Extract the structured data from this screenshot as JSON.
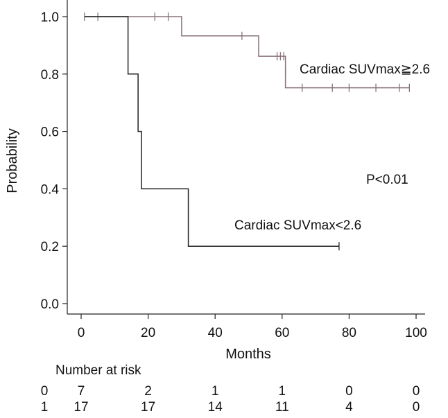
{
  "chart_data": {
    "type": "line",
    "subtype": "kaplan-meier",
    "title": "",
    "xlabel": "Months",
    "ylabel": "Probability",
    "xlim": [
      -4,
      102
    ],
    "ylim": [
      -0.03,
      1.03
    ],
    "xticks": [
      0,
      20,
      40,
      60,
      80,
      100
    ],
    "yticks": [
      0.0,
      0.2,
      0.4,
      0.6,
      0.8,
      1.0
    ],
    "xtick_labels": [
      "0",
      "20",
      "40",
      "60",
      "80",
      "100"
    ],
    "ytick_labels": [
      "0.0",
      "0.2",
      "0.4",
      "0.6",
      "0.8",
      "1.0"
    ],
    "series": [
      {
        "name": "Cardiac SUVmax≧2.6",
        "color": "#8a7377",
        "steps": [
          {
            "x": 1,
            "y": 1.0
          },
          {
            "x": 30,
            "y": 0.933
          },
          {
            "x": 53,
            "y": 0.862
          },
          {
            "x": 61,
            "y": 0.752
          },
          {
            "x": 98,
            "y": 0.752
          }
        ],
        "censored": [
          {
            "x": 1,
            "y": 1.0
          },
          {
            "x": 5,
            "y": 1.0
          },
          {
            "x": 22,
            "y": 1.0
          },
          {
            "x": 26,
            "y": 1.0
          },
          {
            "x": 48,
            "y": 0.933
          },
          {
            "x": 58.5,
            "y": 0.862
          },
          {
            "x": 59.5,
            "y": 0.862
          },
          {
            "x": 60.5,
            "y": 0.862
          },
          {
            "x": 61,
            "y": 0.81
          },
          {
            "x": 66,
            "y": 0.752
          },
          {
            "x": 75,
            "y": 0.752
          },
          {
            "x": 80,
            "y": 0.752
          },
          {
            "x": 88,
            "y": 0.752
          },
          {
            "x": 95,
            "y": 0.752
          },
          {
            "x": 98,
            "y": 0.752
          }
        ]
      },
      {
        "name": "Cardiac SUVmax<2.6",
        "color": "#222222",
        "steps": [
          {
            "x": 1,
            "y": 1.0
          },
          {
            "x": 14,
            "y": 0.8
          },
          {
            "x": 17,
            "y": 0.6
          },
          {
            "x": 18,
            "y": 0.4
          },
          {
            "x": 32,
            "y": 0.2
          },
          {
            "x": 77,
            "y": 0.2
          }
        ],
        "censored": [
          {
            "x": 77,
            "y": 0.2
          }
        ]
      }
    ],
    "annotations": {
      "high_label": "Cardiac SUVmax≧2.6",
      "low_label": "Cardiac SUVmax<2.6",
      "pvalue": "P<0.01"
    },
    "risk_table": {
      "title": "Number at risk",
      "rows": [
        {
          "group": "0",
          "counts": [
            "7",
            "2",
            "1",
            "1",
            "0",
            "0"
          ]
        },
        {
          "group": "1",
          "counts": [
            "17",
            "17",
            "14",
            "11",
            "4",
            "0"
          ]
        }
      ]
    }
  }
}
